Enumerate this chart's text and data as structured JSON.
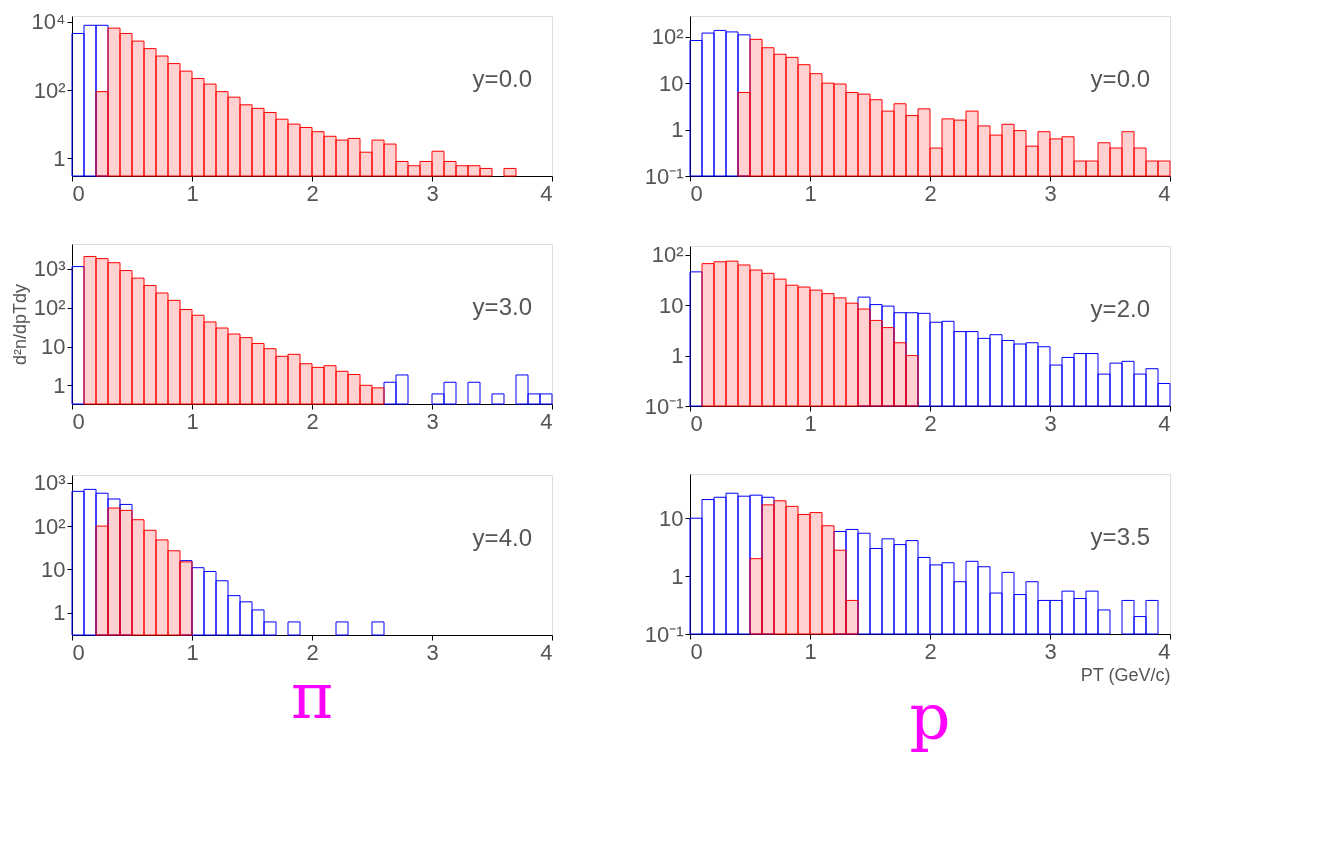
{
  "chart_data": [
    {
      "type": "histogram",
      "log": true,
      "grid": false,
      "annotations": [
        "y=0.0"
      ],
      "xlim": [
        0,
        4
      ],
      "xticks": [
        0,
        1,
        2,
        3,
        4
      ],
      "ylim": [
        0.3,
        15000
      ],
      "yticks": [
        1,
        {
          "value": 100,
          "label": "10²"
        },
        {
          "value": 10000,
          "label": "10⁴"
        }
      ],
      "bins": [
        0,
        0.1,
        0.2,
        0.3,
        0.4,
        0.5,
        0.6,
        0.7,
        0.8,
        0.9,
        1.0,
        1.1,
        1.2,
        1.3,
        1.4,
        1.5,
        1.6,
        1.7,
        1.8,
        1.9,
        2.0,
        2.1,
        2.2,
        2.3,
        2.4,
        2.5,
        2.6,
        2.7,
        2.8,
        2.9,
        3.0,
        3.1,
        3.2,
        3.3,
        3.4,
        3.5,
        3.6,
        3.7,
        3.8,
        3.9,
        4.0
      ],
      "series": [
        {
          "color": "#0000ff",
          "values": [
            4600,
            8000,
            8000,
            null,
            null,
            null,
            null,
            null,
            null,
            null,
            null,
            null,
            null,
            null,
            null,
            null,
            null,
            null,
            null,
            null,
            null,
            null,
            null,
            null,
            null,
            null,
            null,
            null,
            null,
            null,
            null,
            null,
            null,
            null,
            null,
            null,
            null,
            null,
            null,
            null
          ]
        },
        {
          "color": "#ff0000",
          "values": [
            null,
            null,
            90,
            6600,
            4600,
            2750,
            1650,
            1000,
            600,
            360,
            220,
            150,
            90,
            62,
            37,
            29,
            22,
            14,
            10,
            8,
            6,
            4.4,
            3.4,
            3.8,
            1.5,
            3.4,
            2.6,
            0.8,
            0.6,
            0.8,
            1.6,
            0.8,
            0.6,
            0.6,
            0.5,
            null,
            0.5,
            null,
            null,
            null
          ]
        }
      ]
    },
    {
      "type": "histogram",
      "log": true,
      "grid": false,
      "annotations": [
        "y=0.0"
      ],
      "xlim": [
        0,
        4
      ],
      "xticks": [
        0,
        1,
        2,
        3,
        4
      ],
      "ylim": [
        0.1,
        280
      ],
      "yticks": [
        {
          "value": 0.1,
          "label": "10⁻¹"
        },
        1,
        10,
        {
          "value": 100,
          "label": "10²"
        }
      ],
      "bins": [
        0,
        0.1,
        0.2,
        0.3,
        0.4,
        0.5,
        0.6,
        0.7,
        0.8,
        0.9,
        1.0,
        1.1,
        1.2,
        1.3,
        1.4,
        1.5,
        1.6,
        1.7,
        1.8,
        1.9,
        2.0,
        2.1,
        2.2,
        2.3,
        2.4,
        2.5,
        2.6,
        2.7,
        2.8,
        2.9,
        3.0,
        3.1,
        3.2,
        3.3,
        3.4,
        3.5,
        3.6,
        3.7,
        3.8,
        3.9,
        4.0
      ],
      "series": [
        {
          "color": "#0000ff",
          "values": [
            83,
            120,
            137,
            127,
            110,
            null,
            null,
            null,
            null,
            null,
            null,
            null,
            null,
            null,
            null,
            null,
            null,
            null,
            null,
            null,
            null,
            null,
            null,
            null,
            null,
            null,
            null,
            null,
            null,
            null,
            null,
            null,
            null,
            null,
            null,
            null,
            null,
            null,
            null,
            null
          ]
        },
        {
          "color": "#ff0000",
          "values": [
            null,
            null,
            null,
            null,
            6.3,
            88,
            58,
            42,
            36,
            25,
            16,
            10,
            9.6,
            6.3,
            5.8,
            4.4,
            2.5,
            3.6,
            2.0,
            2.8,
            0.4,
            1.7,
            1.6,
            2.5,
            1.2,
            0.76,
            1.3,
            0.95,
            0.44,
            0.9,
            0.63,
            0.7,
            0.21,
            0.21,
            0.52,
            0.4,
            0.9,
            0.4,
            0.21,
            0.21
          ]
        }
      ]
    },
    {
      "type": "histogram",
      "log": true,
      "grid": false,
      "annotations": [
        "y=3.0"
      ],
      "ylabel": "d²n/dpTdy",
      "xlim": [
        0,
        4
      ],
      "xticks": [
        0,
        1,
        2,
        3,
        4
      ],
      "ylim": [
        0.33,
        4400
      ],
      "yticks": [
        1,
        10,
        {
          "value": 100,
          "label": "10²"
        },
        {
          "value": 1000,
          "label": "10³"
        }
      ],
      "bins": [
        0,
        0.1,
        0.2,
        0.3,
        0.4,
        0.5,
        0.6,
        0.7,
        0.8,
        0.9,
        1.0,
        1.1,
        1.2,
        1.3,
        1.4,
        1.5,
        1.6,
        1.7,
        1.8,
        1.9,
        2.0,
        2.1,
        2.2,
        2.3,
        2.4,
        2.5,
        2.6,
        2.7,
        2.8,
        2.9,
        3.0,
        3.1,
        3.2,
        3.3,
        3.4,
        3.5,
        3.6,
        3.7,
        3.8,
        3.9,
        4.0
      ],
      "series": [
        {
          "color": "#0000ff",
          "values": [
            1150,
            null,
            null,
            null,
            null,
            null,
            null,
            null,
            null,
            null,
            null,
            null,
            null,
            null,
            null,
            null,
            null,
            null,
            null,
            null,
            null,
            null,
            null,
            null,
            null,
            null,
            1.2,
            1.85,
            null,
            null,
            0.6,
            1.2,
            null,
            1.2,
            null,
            0.6,
            null,
            1.85,
            0.6,
            0.6
          ]
        },
        {
          "color": "#ff0000",
          "values": [
            null,
            2100,
            1850,
            1450,
            910,
            580,
            375,
            240,
            155,
            90,
            64,
            43,
            30,
            21,
            17,
            12,
            8.8,
            5.6,
            6.3,
            3.6,
            2.9,
            3.2,
            2.3,
            1.9,
            1,
            0.86,
            null,
            null,
            null,
            null,
            null,
            null,
            null,
            null,
            null,
            null,
            null,
            null,
            null,
            null
          ]
        }
      ]
    },
    {
      "type": "histogram",
      "log": true,
      "grid": false,
      "annotations": [
        "y=2.0"
      ],
      "xlim": [
        0,
        4
      ],
      "xticks": [
        0,
        1,
        2,
        3,
        4
      ],
      "ylim": [
        0.1,
        150
      ],
      "yticks": [
        {
          "value": 0.1,
          "label": "10⁻¹"
        },
        1,
        10,
        {
          "value": 100,
          "label": "10²"
        }
      ],
      "bins": [
        0,
        0.1,
        0.2,
        0.3,
        0.4,
        0.5,
        0.6,
        0.7,
        0.8,
        0.9,
        1.0,
        1.1,
        1.2,
        1.3,
        1.4,
        1.5,
        1.6,
        1.7,
        1.8,
        1.9,
        2.0,
        2.1,
        2.2,
        2.3,
        2.4,
        2.5,
        2.6,
        2.7,
        2.8,
        2.9,
        3.0,
        3.1,
        3.2,
        3.3,
        3.4,
        3.5,
        3.6,
        3.7,
        3.8,
        3.9,
        4.0
      ],
      "series": [
        {
          "color": "#0000ff",
          "values": [
            46,
            null,
            null,
            null,
            null,
            null,
            null,
            null,
            null,
            null,
            null,
            null,
            null,
            null,
            14.5,
            10.3,
            9.6,
            7.1,
            7.1,
            6.9,
            4.6,
            4.8,
            3,
            3,
            2.2,
            2.6,
            2,
            1.7,
            1.8,
            1.5,
            0.65,
            0.92,
            1.1,
            1.1,
            0.43,
            0.71,
            0.77,
            0.43,
            0.55,
            0.28
          ]
        },
        {
          "color": "#ff0000",
          "values": [
            null,
            67,
            73,
            75,
            63,
            50,
            43,
            33,
            25,
            23,
            20,
            17,
            14,
            11,
            8.4,
            5,
            3.6,
            1.8,
            1,
            null,
            null,
            null,
            null,
            null,
            null,
            null,
            null,
            null,
            null,
            null,
            null,
            null,
            null,
            null,
            null,
            null,
            null,
            null,
            null,
            null
          ]
        }
      ]
    },
    {
      "type": "histogram",
      "log": true,
      "grid": false,
      "annotations": [
        "y=4.0"
      ],
      "title": "π",
      "xlim": [
        0,
        4
      ],
      "xticks": [
        0,
        1,
        2,
        3,
        4
      ],
      "ylim": [
        0.31,
        1500
      ],
      "yticks": [
        1,
        10,
        {
          "value": 100,
          "label": "10²"
        },
        {
          "value": 1000,
          "label": "10³"
        }
      ],
      "bins": [
        0,
        0.1,
        0.2,
        0.3,
        0.4,
        0.5,
        0.6,
        0.7,
        0.8,
        0.9,
        1.0,
        1.1,
        1.2,
        1.3,
        1.4,
        1.5,
        1.6,
        1.7,
        1.8,
        1.9,
        2.0,
        2.1,
        2.2,
        2.3,
        2.4,
        2.5,
        2.6,
        2.7,
        2.8,
        2.9,
        3.0,
        3.1,
        3.2,
        3.3,
        3.4,
        3.5,
        3.6,
        3.7,
        3.8,
        3.9,
        4.0
      ],
      "series": [
        {
          "color": "#0000ff",
          "values": [
            630,
            700,
            570,
            420,
            315,
            null,
            null,
            null,
            null,
            16,
            11,
            9,
            5.5,
            2.5,
            1.8,
            1.17,
            0.62,
            null,
            0.62,
            null,
            null,
            null,
            0.62,
            null,
            null,
            0.62,
            null,
            null,
            null,
            null,
            null,
            null,
            null,
            null,
            null,
            null,
            null,
            null,
            null,
            null
          ]
        },
        {
          "color": "#ff0000",
          "values": [
            null,
            null,
            100,
            260,
            230,
            140,
            80,
            48,
            27,
            15,
            null,
            null,
            null,
            null,
            null,
            null,
            null,
            null,
            null,
            null,
            null,
            null,
            null,
            null,
            null,
            null,
            null,
            null,
            null,
            null,
            null,
            null,
            null,
            null,
            null,
            null,
            null,
            null,
            null,
            null
          ]
        }
      ]
    },
    {
      "type": "histogram",
      "log": true,
      "grid": false,
      "annotations": [
        "y=3.5"
      ],
      "title": "p",
      "xlabel": "PT (GeV/c)",
      "xlim": [
        0,
        4
      ],
      "xticks": [
        0,
        1,
        2,
        3,
        4
      ],
      "ylim": [
        0.1,
        58
      ],
      "yticks": [
        {
          "value": 0.1,
          "label": "10⁻¹"
        },
        1,
        10
      ],
      "bins": [
        0,
        0.1,
        0.2,
        0.3,
        0.4,
        0.5,
        0.6,
        0.7,
        0.8,
        0.9,
        1.0,
        1.1,
        1.2,
        1.3,
        1.4,
        1.5,
        1.6,
        1.7,
        1.8,
        1.9,
        2.0,
        2.1,
        2.2,
        2.3,
        2.4,
        2.5,
        2.6,
        2.7,
        2.8,
        2.9,
        3.0,
        3.1,
        3.2,
        3.3,
        3.4,
        3.5,
        3.6,
        3.7,
        3.8,
        3.9,
        4.0
      ],
      "series": [
        {
          "color": "#0000ff",
          "values": [
            10,
            21,
            23,
            27,
            24,
            25,
            23,
            null,
            null,
            null,
            null,
            null,
            5.9,
            6.4,
            5.5,
            3,
            4.4,
            3.5,
            4.1,
            2.1,
            1.56,
            1.7,
            0.8,
            1.8,
            1.45,
            0.51,
            1.16,
            0.48,
            0.8,
            0.38,
            0.38,
            0.55,
            0.41,
            0.55,
            0.26,
            null,
            0.38,
            0.2,
            0.38,
            null
          ]
        },
        {
          "color": "#ff0000",
          "values": [
            null,
            null,
            null,
            null,
            null,
            2,
            17,
            20,
            16,
            11.6,
            12.5,
            7.4,
            2.8,
            0.38,
            null,
            null,
            null,
            null,
            null,
            null,
            null,
            null,
            null,
            null,
            null,
            null,
            null,
            null,
            null,
            null,
            null,
            null,
            null,
            null,
            null,
            null,
            null,
            null,
            null,
            null
          ]
        }
      ]
    }
  ]
}
